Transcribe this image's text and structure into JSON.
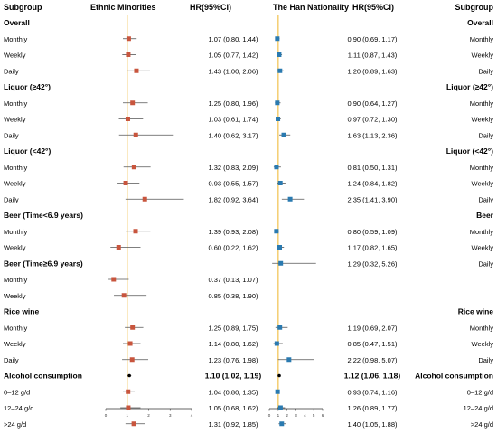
{
  "headers": {
    "subgroup_left": "Subgroup",
    "ethnic": "Ethnic Minorities",
    "hr_left": "HR(95%CI)",
    "han": "The Han Nationality",
    "hr_right": "HR(95%CI)",
    "subgroup_right": "Subgroup"
  },
  "colors": {
    "ref_line": "#f2c14e",
    "left_marker": "#c8553d",
    "right_marker": "#2a7ab0",
    "overall_marker": "#000000",
    "ci_line": "#555555"
  },
  "chart_data": [
    {
      "type": "forest",
      "panel": "Ethnic Minorities",
      "xlim": [
        0,
        4
      ],
      "xticks": [
        "0",
        "1",
        "2",
        "3",
        "4"
      ],
      "reference": 1,
      "rows": [
        {
          "label": "Overall",
          "header": true
        },
        {
          "label": "Monthly",
          "hr": 1.07,
          "lo": 0.8,
          "hi": 1.44,
          "text": "1.07 (0.80, 1.44)"
        },
        {
          "label": "Weekly",
          "hr": 1.05,
          "lo": 0.77,
          "hi": 1.42,
          "text": "1.05 (0.77, 1.42)"
        },
        {
          "label": "Daily",
          "hr": 1.43,
          "lo": 1.0,
          "hi": 2.06,
          "text": "1.43 (1.00, 2.06)"
        },
        {
          "label": "Liquor (≥42°)",
          "header": true
        },
        {
          "label": "Monthly",
          "hr": 1.25,
          "lo": 0.8,
          "hi": 1.96,
          "text": "1.25 (0.80, 1.96)"
        },
        {
          "label": "Weekly",
          "hr": 1.03,
          "lo": 0.61,
          "hi": 1.74,
          "text": "1.03 (0.61, 1.74)"
        },
        {
          "label": "Daily",
          "hr": 1.4,
          "lo": 0.62,
          "hi": 3.17,
          "text": "1.40 (0.62, 3.17)"
        },
        {
          "label": "Liquor (<42°)",
          "header": true
        },
        {
          "label": "Monthly",
          "hr": 1.32,
          "lo": 0.83,
          "hi": 2.09,
          "text": "1.32 (0.83, 2.09)"
        },
        {
          "label": "Weekly",
          "hr": 0.93,
          "lo": 0.55,
          "hi": 1.57,
          "text": "0.93 (0.55, 1.57)"
        },
        {
          "label": "Daily",
          "hr": 1.82,
          "lo": 0.92,
          "hi": 3.64,
          "text": "1.82 (0.92, 3.64)"
        },
        {
          "label": "Beer (Time<6.9 years)",
          "header": true
        },
        {
          "label": "Monthly",
          "hr": 1.39,
          "lo": 0.93,
          "hi": 2.08,
          "text": "1.39 (0.93, 2.08)"
        },
        {
          "label": "Weekly",
          "hr": 0.6,
          "lo": 0.22,
          "hi": 1.62,
          "text": "0.60 (0.22, 1.62)"
        },
        {
          "label": "Beer (Time≥6.9 years)",
          "header": true
        },
        {
          "label": "Monthly",
          "hr": 0.37,
          "lo": 0.13,
          "hi": 1.07,
          "text": "0.37 (0.13, 1.07)"
        },
        {
          "label": "Weekly",
          "hr": 0.85,
          "lo": 0.38,
          "hi": 1.9,
          "text": "0.85 (0.38, 1.90)"
        },
        {
          "label": "Rice wine",
          "header": true
        },
        {
          "label": "Monthly",
          "hr": 1.25,
          "lo": 0.89,
          "hi": 1.75,
          "text": "1.25 (0.89, 1.75)"
        },
        {
          "label": "Weekly",
          "hr": 1.14,
          "lo": 0.8,
          "hi": 1.62,
          "text": "1.14 (0.80, 1.62)"
        },
        {
          "label": "Daily",
          "hr": 1.23,
          "lo": 0.76,
          "hi": 1.98,
          "text": "1.23 (0.76, 1.98)"
        },
        {
          "label": "Alcohol consumption",
          "header": true,
          "overall": true,
          "hr": 1.1,
          "lo": 1.02,
          "hi": 1.19,
          "text": "1.10 (1.02, 1.19)"
        },
        {
          "label": "0–12 g/d",
          "hr": 1.04,
          "lo": 0.8,
          "hi": 1.35,
          "text": "1.04 (0.80, 1.35)"
        },
        {
          "label": "12–24 g/d",
          "hr": 1.05,
          "lo": 0.68,
          "hi": 1.62,
          "text": "1.05 (0.68, 1.62)"
        },
        {
          "label": ">24 g/d",
          "hr": 1.31,
          "lo": 0.92,
          "hi": 1.85,
          "text": "1.31 (0.92, 1.85)"
        }
      ]
    },
    {
      "type": "forest",
      "panel": "The Han Nationality",
      "xlim": [
        0,
        6
      ],
      "xticks": [
        "0",
        "1",
        "2",
        "3",
        "4",
        "5",
        "6"
      ],
      "reference": 1,
      "rows": [
        {
          "label": "Overall",
          "header": true
        },
        {
          "label": "Monthly",
          "hr": 0.9,
          "lo": 0.69,
          "hi": 1.17,
          "text": "0.90 (0.69, 1.17)"
        },
        {
          "label": "Weekly",
          "hr": 1.11,
          "lo": 0.87,
          "hi": 1.43,
          "text": "1.11 (0.87, 1.43)"
        },
        {
          "label": "Daily",
          "hr": 1.2,
          "lo": 0.89,
          "hi": 1.63,
          "text": "1.20 (0.89, 1.63)"
        },
        {
          "label": "Liquor (≥42°)",
          "header": true
        },
        {
          "label": "Monthly",
          "hr": 0.9,
          "lo": 0.64,
          "hi": 1.27,
          "text": "0.90 (0.64, 1.27)"
        },
        {
          "label": "Weekly",
          "hr": 0.97,
          "lo": 0.72,
          "hi": 1.3,
          "text": "0.97 (0.72, 1.30)"
        },
        {
          "label": "Daily",
          "hr": 1.63,
          "lo": 1.13,
          "hi": 2.36,
          "text": "1.63 (1.13, 2.36)"
        },
        {
          "label": "Liquor (<42°)",
          "header": true
        },
        {
          "label": "Monthly",
          "hr": 0.81,
          "lo": 0.5,
          "hi": 1.31,
          "text": "0.81 (0.50, 1.31)"
        },
        {
          "label": "Weekly",
          "hr": 1.24,
          "lo": 0.84,
          "hi": 1.82,
          "text": "1.24 (0.84, 1.82)"
        },
        {
          "label": "Daily",
          "hr": 2.35,
          "lo": 1.41,
          "hi": 3.9,
          "text": "2.35 (1.41, 3.90)"
        },
        {
          "label": "Beer",
          "header": true
        },
        {
          "label": "Monthly",
          "hr": 0.8,
          "lo": 0.59,
          "hi": 1.09,
          "text": "0.80 (0.59, 1.09)"
        },
        {
          "label": "Weekly",
          "hr": 1.17,
          "lo": 0.82,
          "hi": 1.65,
          "text": "1.17 (0.82, 1.65)"
        },
        {
          "label": "Daily",
          "hr": 1.29,
          "lo": 0.32,
          "hi": 5.26,
          "text": "1.29 (0.32, 5.26)"
        },
        {
          "skip": true
        },
        {
          "skip": true
        },
        {
          "label": "Rice wine",
          "header": true
        },
        {
          "label": "Monthly",
          "hr": 1.19,
          "lo": 0.69,
          "hi": 2.07,
          "text": "1.19 (0.69, 2.07)"
        },
        {
          "label": "Weekly",
          "hr": 0.85,
          "lo": 0.47,
          "hi": 1.51,
          "text": "0.85 (0.47, 1.51)"
        },
        {
          "label": "Daily",
          "hr": 2.22,
          "lo": 0.98,
          "hi": 5.07,
          "text": "2.22 (0.98, 5.07)"
        },
        {
          "label": "Alcohol consumption",
          "header": true,
          "overall": true,
          "hr": 1.12,
          "lo": 1.06,
          "hi": 1.18,
          "text": "1.12 (1.06, 1.18)"
        },
        {
          "label": "0–12 g/d",
          "hr": 0.93,
          "lo": 0.74,
          "hi": 1.16,
          "text": "0.93 (0.74, 1.16)"
        },
        {
          "label": "12–24 g/d",
          "hr": 1.26,
          "lo": 0.89,
          "hi": 1.77,
          "text": "1.26 (0.89, 1.77)"
        },
        {
          "label": ">24 g/d",
          "hr": 1.4,
          "lo": 1.05,
          "hi": 1.88,
          "text": "1.40 (1.05, 1.88)"
        }
      ]
    }
  ]
}
